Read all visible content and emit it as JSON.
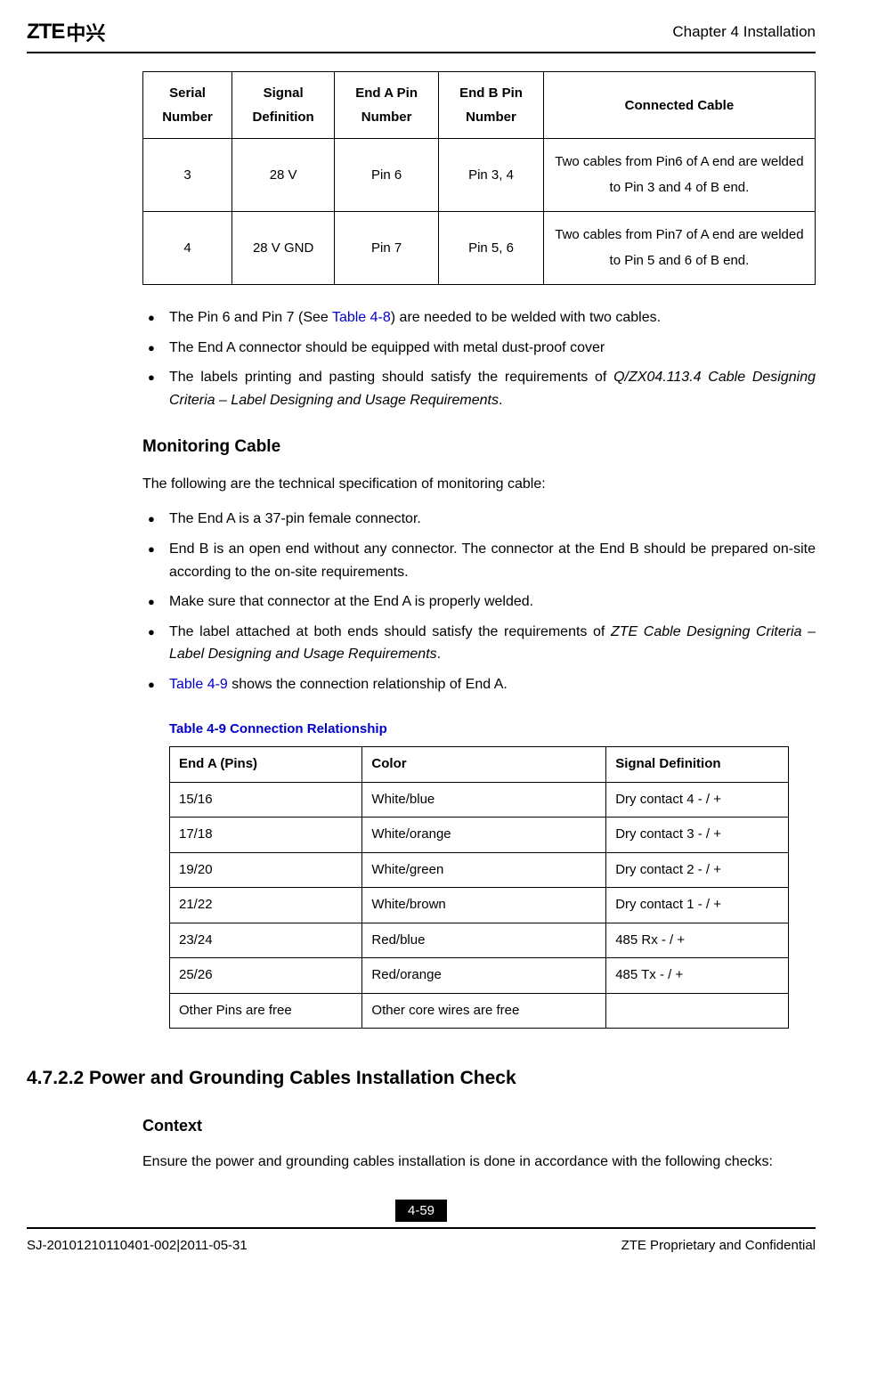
{
  "header": {
    "logo_text": "ZTE",
    "logo_chinese": "中兴",
    "chapter": "Chapter 4 Installation"
  },
  "table1": {
    "columns": [
      "Serial Number",
      "Signal Definition",
      "End A Pin Number",
      "End B Pin Number",
      "Connected Cable"
    ],
    "rows": [
      [
        "3",
        "28 V",
        "Pin 6",
        "Pin 3, 4",
        "Two cables from Pin6 of A end are welded to Pin 3 and 4 of B end."
      ],
      [
        "4",
        "28 V GND",
        "Pin 7",
        "Pin 5, 6",
        "Two cables from Pin7 of A end are welded to Pin 5 and 6 of B end."
      ]
    ]
  },
  "bullets1": {
    "b1_pre": "The Pin 6 and Pin 7 (See ",
    "b1_link": "Table 4-8",
    "b1_post": ") are needed to be welded with two cables.",
    "b2": "The End A connector should be equipped with metal dust-proof cover",
    "b3_pre": "The labels printing and pasting should satisfy the requirements of ",
    "b3_italic": "Q/ZX04.113.4 Cable Designing Criteria – Label Designing and Usage Requirements",
    "b3_post": "."
  },
  "monitoring": {
    "heading": "Monitoring Cable",
    "intro": "The following are the technical specification of monitoring cable:",
    "b1": "The End A is a 37-pin female connector.",
    "b2": " End B is an open end without any connector. The connector at the End B should be prepared on-site according to the on-site requirements.",
    "b3": "Make sure that connector at the End A is properly welded.",
    "b4_pre": "The label attached at both ends should satisfy the requirements of ",
    "b4_italic": "ZTE Cable Designing Criteria – Label Designing and Usage Requirements",
    "b4_post": ".",
    "b5_link": "Table 4-9",
    "b5_post": " shows the connection relationship of End A."
  },
  "table2": {
    "caption": "Table 4-9 Connection Relationship",
    "columns": [
      "End A (Pins)",
      "Color",
      "Signal Definition"
    ],
    "rows": [
      [
        "15/16",
        "White/blue",
        "Dry contact 4 - / +"
      ],
      [
        "17/18",
        "White/orange",
        "Dry contact 3 - / +"
      ],
      [
        "19/20",
        "White/green",
        "Dry contact 2 - / +"
      ],
      [
        "21/22",
        "White/brown",
        "Dry contact 1 - / +"
      ],
      [
        "23/24",
        "Red/blue",
        "485 Rx - / +"
      ],
      [
        "25/26",
        "Red/orange",
        "485 Tx - / +"
      ],
      [
        "Other Pins are free",
        "Other core wires are free",
        ""
      ]
    ]
  },
  "section2": {
    "heading": "4.7.2.2 Power and Grounding Cables Installation Check",
    "subheading": "Context",
    "para": "Ensure the power and grounding cables installation is done in accordance with the following checks:"
  },
  "footer": {
    "page_num": "4-59",
    "doc_id": "SJ-20101210110401-002|2011-05-31",
    "confidential": "ZTE Proprietary and Confidential"
  }
}
